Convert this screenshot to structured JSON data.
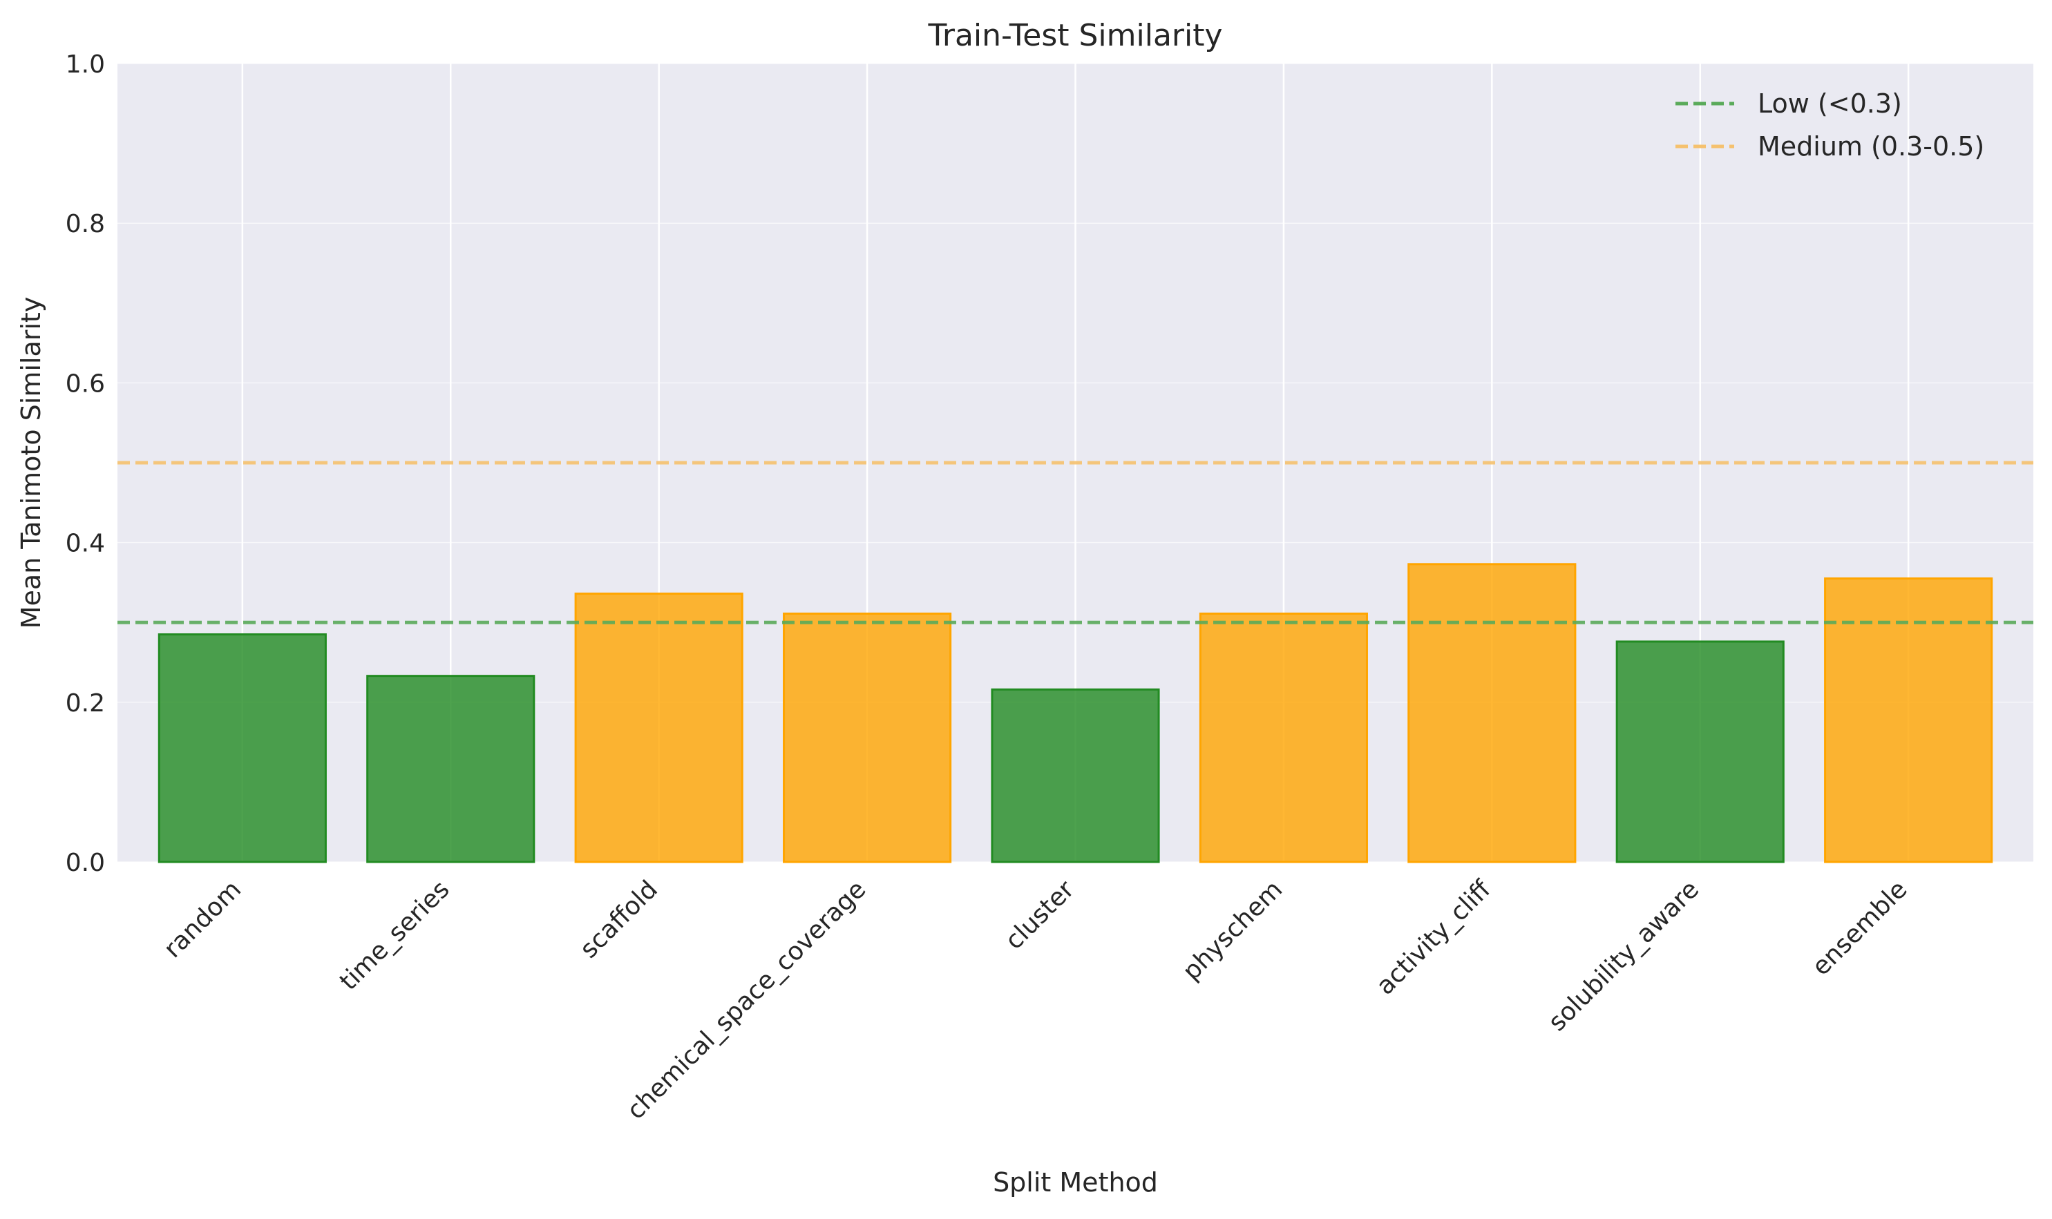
{
  "chart_data": {
    "type": "bar",
    "title": "Train-Test Similarity",
    "xlabel": "Split Method",
    "ylabel": "Mean Tanimoto Similarity",
    "ylim": [
      0,
      1.0
    ],
    "yticks": [
      "0.0",
      "0.2",
      "0.4",
      "0.6",
      "0.8",
      "1.0"
    ],
    "categories": [
      "random",
      "time_series",
      "scaffold",
      "chemical_space_coverage",
      "cluster",
      "physchem",
      "activity_cliff",
      "solubility_aware",
      "ensemble"
    ],
    "values": [
      0.285,
      0.233,
      0.336,
      0.311,
      0.216,
      0.311,
      0.373,
      0.276,
      0.355
    ],
    "bar_colors": [
      "#228b22",
      "#228b22",
      "#ffa500",
      "#ffa500",
      "#228b22",
      "#ffa500",
      "#ffa500",
      "#228b22",
      "#ffa500"
    ],
    "reference_lines": [
      {
        "label": "Low (<0.3)",
        "y": 0.3,
        "color": "#5aaa5a",
        "style": "dashed"
      },
      {
        "label": "Medium (0.3-0.5)",
        "y": 0.5,
        "color": "#f5c16e",
        "style": "dashed"
      }
    ],
    "grid": true,
    "legend_position": "top-right",
    "background_color": "#eaeaf2"
  }
}
